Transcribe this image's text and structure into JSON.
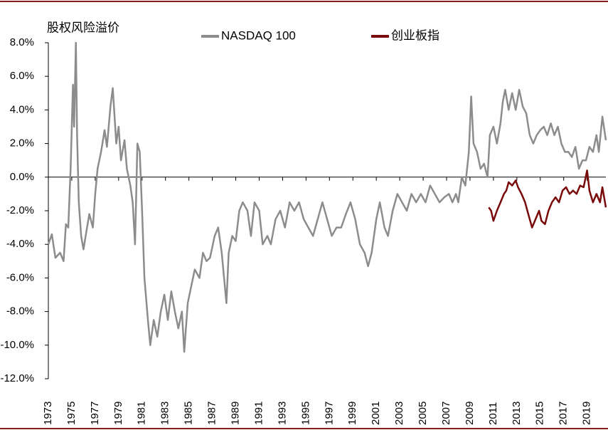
{
  "chart_data": {
    "type": "line",
    "title": "股权风险溢价",
    "xlim": [
      1973,
      2020.6
    ],
    "xticks": [
      1973,
      1975,
      1977,
      1979,
      1981,
      1983,
      1985,
      1987,
      1989,
      1991,
      1993,
      1995,
      1997,
      1999,
      2001,
      2003,
      2005,
      2007,
      2009,
      2011,
      2013,
      2015,
      2017,
      2019
    ],
    "ylim": [
      -12,
      8
    ],
    "yticks": [
      {
        "value": 8,
        "label": "8.0%"
      },
      {
        "value": 6,
        "label": "6.0%"
      },
      {
        "value": 4,
        "label": "4.0%"
      },
      {
        "value": 2,
        "label": "2.0%"
      },
      {
        "value": 0,
        "label": "0.0%"
      },
      {
        "value": -2,
        "label": "-2.0%"
      },
      {
        "value": -4,
        "label": "-4.0%"
      },
      {
        "value": -6,
        "label": "-6.0%"
      },
      {
        "value": -8,
        "label": "-8.0%"
      },
      {
        "value": -10,
        "label": "-10.0%"
      },
      {
        "value": -12,
        "label": "-12.0%"
      }
    ],
    "grid": false,
    "series": [
      {
        "name": "NASDAQ 100",
        "color": "#8c8c8c",
        "x": [
          1973.0,
          1973.3,
          1973.6,
          1974.0,
          1974.3,
          1974.5,
          1974.7,
          1974.9,
          1975.1,
          1975.2,
          1975.35,
          1975.45,
          1975.6,
          1975.8,
          1976.0,
          1976.3,
          1976.5,
          1976.8,
          1977.0,
          1977.2,
          1977.5,
          1977.8,
          1978.0,
          1978.3,
          1978.5,
          1978.8,
          1979.0,
          1979.2,
          1979.5,
          1979.7,
          1980.0,
          1980.2,
          1980.4,
          1980.6,
          1980.8,
          1981.0,
          1981.2,
          1981.5,
          1981.7,
          1982.0,
          1982.3,
          1982.6,
          1982.9,
          1983.2,
          1983.5,
          1983.8,
          1984.1,
          1984.4,
          1984.6,
          1984.9,
          1985.2,
          1985.5,
          1985.9,
          1986.2,
          1986.5,
          1986.8,
          1987.2,
          1987.5,
          1987.8,
          1988.0,
          1988.2,
          1988.4,
          1988.7,
          1989.0,
          1989.3,
          1989.6,
          1990.0,
          1990.3,
          1990.6,
          1991.0,
          1991.3,
          1991.7,
          1992.0,
          1992.4,
          1992.8,
          1993.2,
          1993.6,
          1994.0,
          1994.4,
          1994.8,
          1995.2,
          1995.6,
          1996.0,
          1996.4,
          1996.8,
          1997.2,
          1997.6,
          1998.0,
          1998.4,
          1998.8,
          1999.2,
          1999.6,
          2000.0,
          2000.3,
          2000.6,
          2001.0,
          2001.3,
          2001.7,
          2002.0,
          2002.4,
          2002.8,
          2003.2,
          2003.6,
          2004.0,
          2004.4,
          2004.8,
          2005.2,
          2005.6,
          2006.0,
          2006.4,
          2006.8,
          2007.2,
          2007.5,
          2007.8,
          2008.0,
          2008.3,
          2008.6,
          2008.9,
          2009.1,
          2009.3,
          2009.6,
          2009.9,
          2010.2,
          2010.5,
          2010.7,
          2011.0,
          2011.3,
          2011.6,
          2011.8,
          2012.0,
          2012.3,
          2012.6,
          2012.9,
          2013.2,
          2013.5,
          2013.8,
          2014.1,
          2014.4,
          2014.7,
          2015.0,
          2015.3,
          2015.6,
          2015.9,
          2016.2,
          2016.5,
          2016.8,
          2017.1,
          2017.4,
          2017.7,
          2018.0,
          2018.3,
          2018.6,
          2018.9,
          2019.2,
          2019.5,
          2019.8,
          2020.0,
          2020.3,
          2020.6
        ],
        "values": [
          -4.0,
          -3.4,
          -4.8,
          -4.5,
          -5.0,
          -2.8,
          -3.0,
          0.5,
          5.5,
          3.0,
          8.0,
          2.5,
          -1.5,
          -3.5,
          -4.3,
          -3.0,
          -2.2,
          -3.0,
          -1.0,
          0.5,
          1.5,
          2.8,
          1.8,
          4.2,
          5.3,
          2.0,
          3.0,
          1.0,
          2.2,
          0.5,
          -0.5,
          -1.5,
          -4.0,
          2.0,
          1.5,
          -2.0,
          -6.0,
          -8.5,
          -10.0,
          -8.5,
          -9.5,
          -8.0,
          -7.0,
          -8.5,
          -6.8,
          -8.0,
          -9.0,
          -8.0,
          -10.4,
          -7.5,
          -6.5,
          -5.5,
          -6.0,
          -4.5,
          -5.0,
          -4.8,
          -3.5,
          -3.0,
          -4.5,
          -6.0,
          -7.5,
          -4.5,
          -3.5,
          -3.8,
          -2.0,
          -1.5,
          -2.0,
          -3.5,
          -1.5,
          -2.0,
          -4.0,
          -3.5,
          -4.0,
          -2.5,
          -2.0,
          -3.0,
          -1.5,
          -2.0,
          -1.5,
          -2.5,
          -3.0,
          -3.5,
          -2.5,
          -1.5,
          -2.5,
          -3.5,
          -3.0,
          -3.0,
          -2.2,
          -1.5,
          -2.5,
          -4.0,
          -4.5,
          -5.3,
          -4.5,
          -2.5,
          -1.5,
          -3.0,
          -3.5,
          -2.0,
          -1.0,
          -1.5,
          -2.0,
          -1.0,
          -1.5,
          -1.0,
          -1.5,
          -0.5,
          -1.0,
          -1.5,
          -1.2,
          -1.0,
          -1.5,
          -1.0,
          -1.5,
          0.0,
          -0.5,
          1.5,
          4.8,
          2.0,
          1.5,
          0.5,
          0.8,
          0.0,
          2.5,
          3.0,
          2.0,
          3.2,
          4.5,
          5.2,
          4.0,
          5.0,
          4.0,
          5.2,
          4.2,
          3.8,
          2.5,
          2.0,
          2.5,
          2.8,
          3.0,
          2.5,
          3.2,
          2.5,
          3.0,
          2.0,
          1.5,
          1.5,
          1.2,
          1.8,
          0.5,
          1.0,
          1.0,
          1.8,
          1.5,
          2.5,
          1.5,
          3.6,
          2.2
        ]
      },
      {
        "name": "创业板指",
        "color": "#7a0a0a",
        "x": [
          2010.6,
          2010.8,
          2011.0,
          2011.3,
          2011.6,
          2011.9,
          2012.1,
          2012.3,
          2012.6,
          2012.9,
          2013.1,
          2013.4,
          2013.7,
          2013.9,
          2014.1,
          2014.3,
          2014.6,
          2014.9,
          2015.1,
          2015.4,
          2015.7,
          2016.0,
          2016.3,
          2016.6,
          2016.9,
          2017.2,
          2017.5,
          2017.8,
          2018.1,
          2018.4,
          2018.7,
          2019.0,
          2019.2,
          2019.5,
          2019.8,
          2020.1,
          2020.3,
          2020.6
        ],
        "values": [
          -1.8,
          -2.0,
          -2.6,
          -2.0,
          -1.5,
          -1.0,
          -0.8,
          -0.3,
          -0.5,
          -0.2,
          -0.6,
          -1.0,
          -1.5,
          -2.0,
          -2.5,
          -3.0,
          -2.5,
          -2.0,
          -2.6,
          -2.8,
          -2.0,
          -1.5,
          -1.2,
          -1.5,
          -0.8,
          -0.6,
          -1.0,
          -0.8,
          -1.0,
          -0.5,
          -0.6,
          0.4,
          -0.8,
          -1.5,
          -1.0,
          -1.5,
          -0.6,
          -1.8
        ]
      }
    ]
  }
}
